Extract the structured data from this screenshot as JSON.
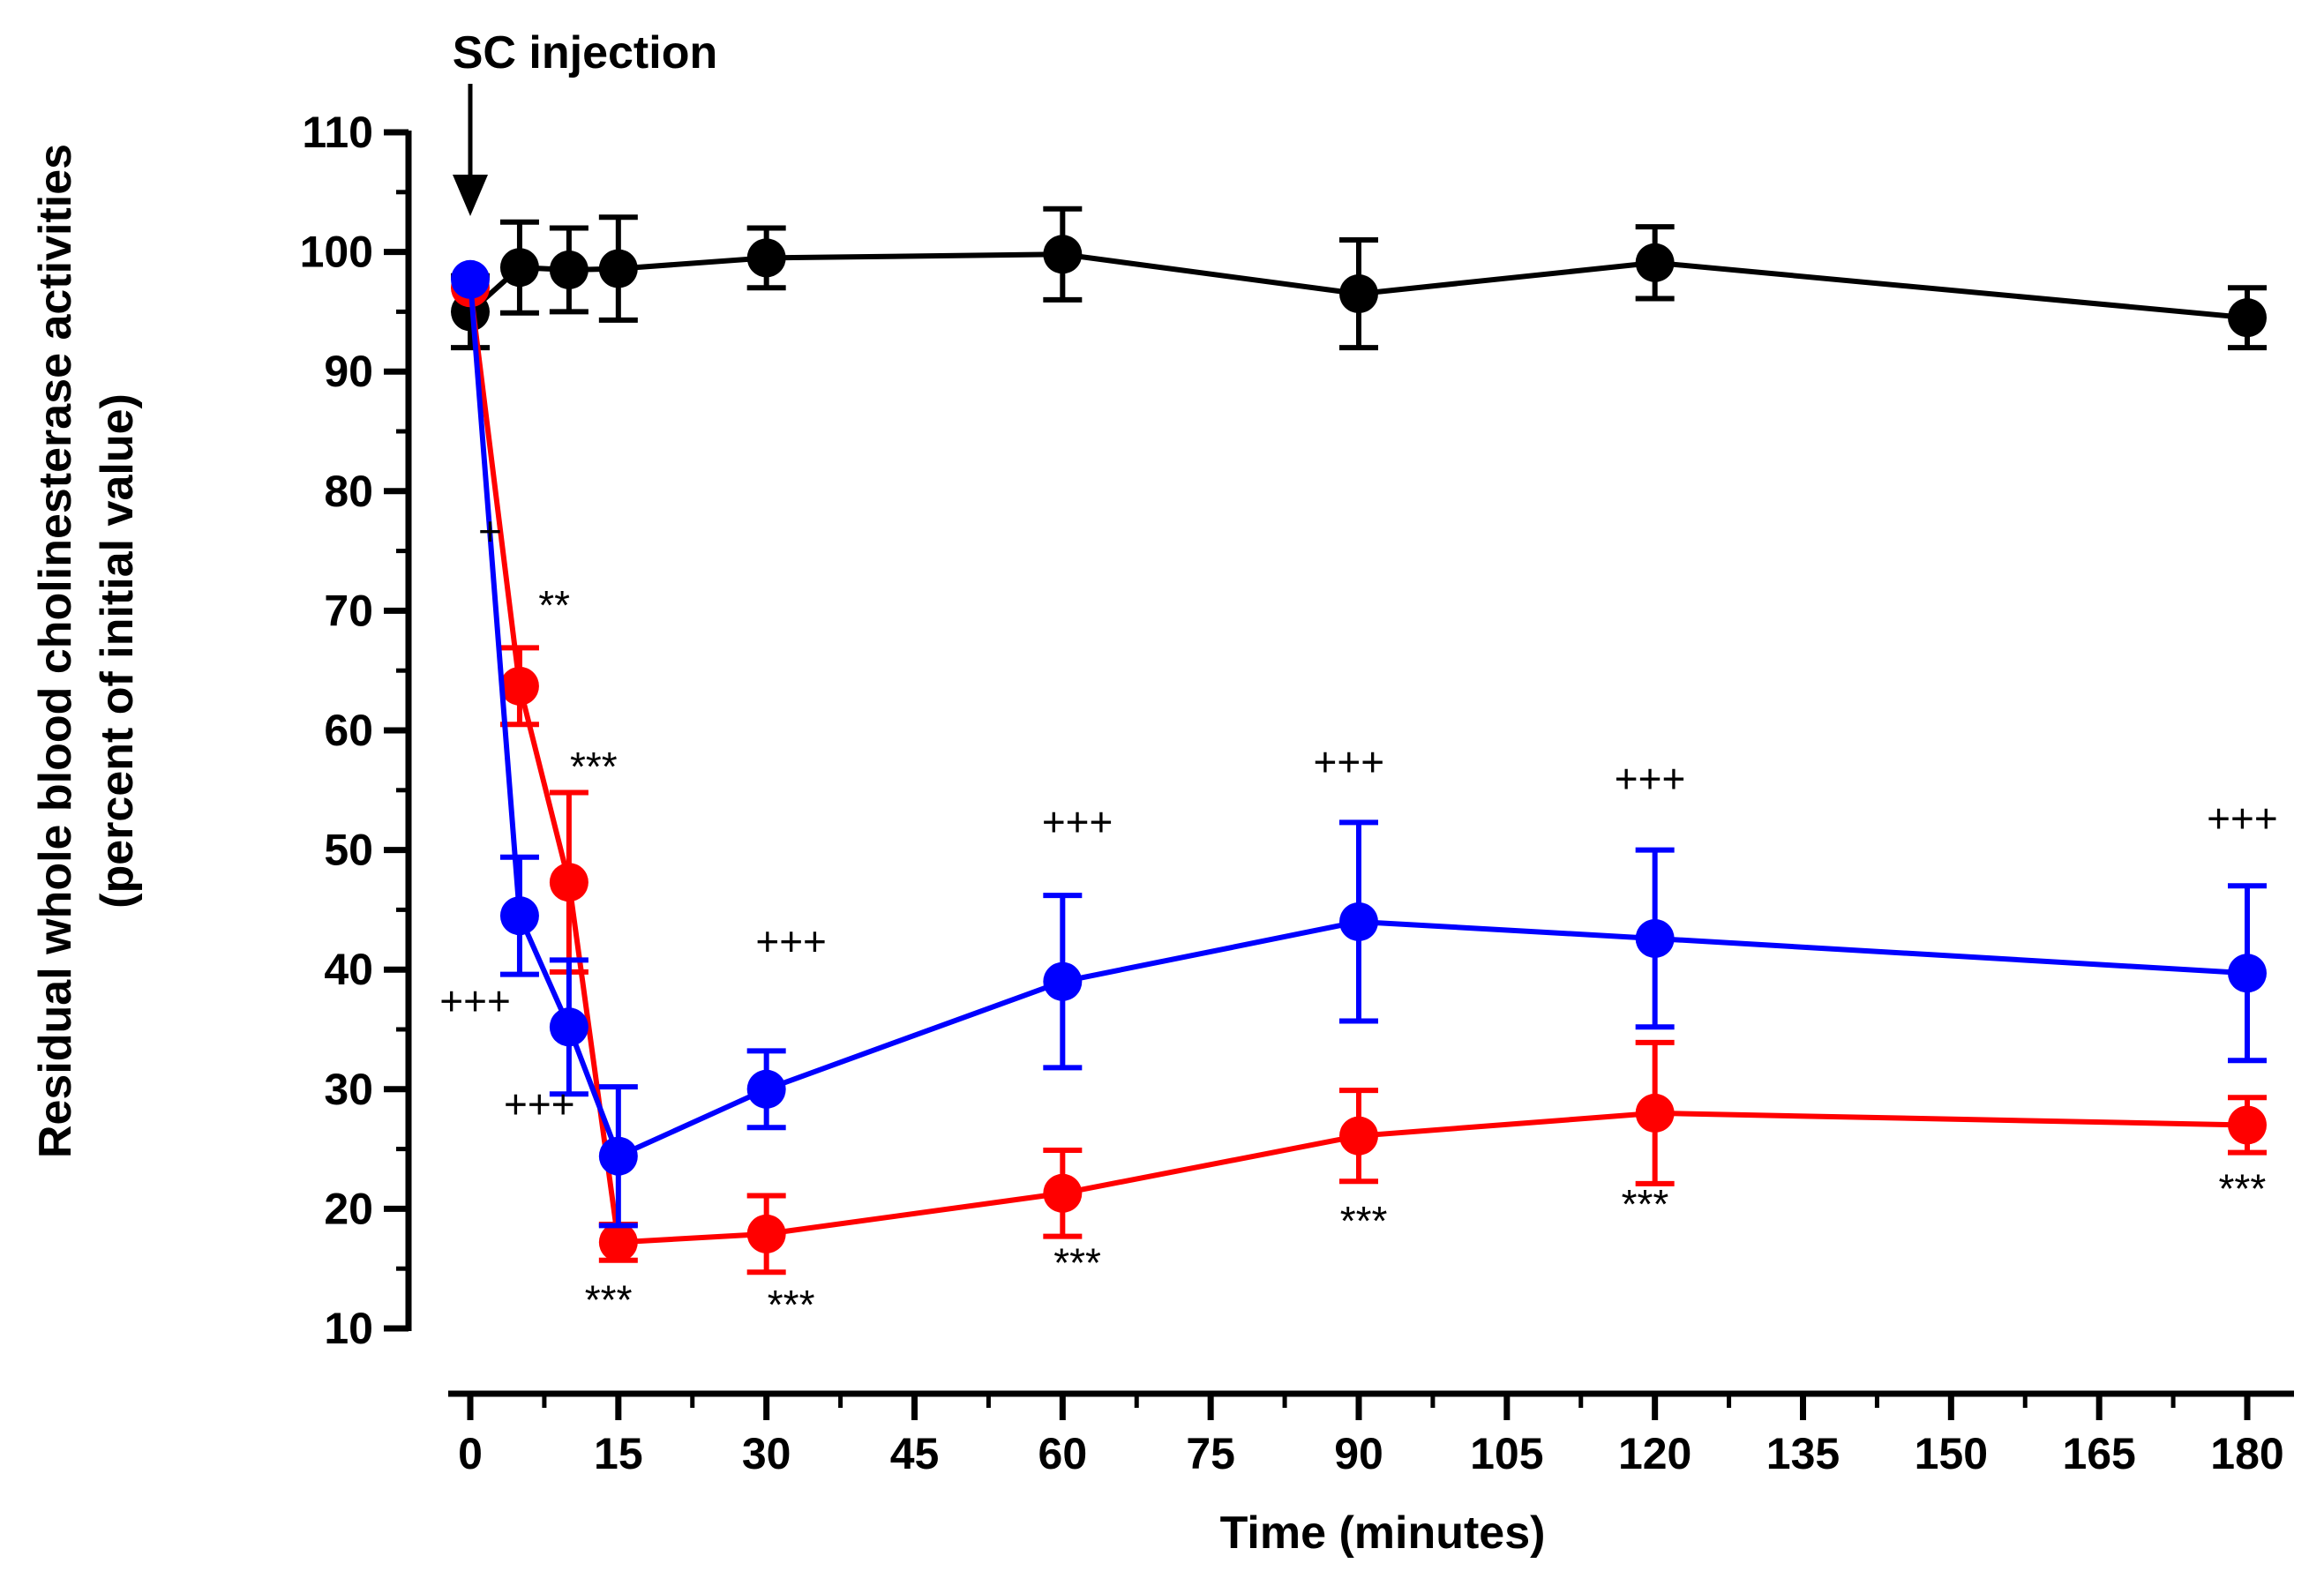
{
  "chart_data": {
    "type": "line",
    "title": "",
    "xlabel": "Time (minutes)",
    "ylabel_line1": "Residual whole blood  cholinesterase activities",
    "ylabel_line2": "(percent of initial value)",
    "xlim": [
      0,
      180
    ],
    "ylim": [
      10,
      110
    ],
    "xticks": [
      "0",
      "15",
      "30",
      "45",
      "60",
      "75",
      "90",
      "105",
      "120",
      "135",
      "150",
      "165",
      "180"
    ],
    "yticks": [
      "10",
      "20",
      "30",
      "40",
      "50",
      "60",
      "70",
      "80",
      "90",
      "100",
      "110"
    ],
    "injection_label": "SC injection",
    "series": [
      {
        "name": "black",
        "color": "#000000",
        "x": [
          0,
          5,
          10,
          15,
          30,
          60,
          90,
          120,
          180
        ],
        "y": [
          95,
          98.7,
          98.5,
          98.6,
          99.5,
          99.8,
          96.5,
          99.1,
          94.5
        ],
        "err": [
          3,
          3.8,
          3.5,
          4.3,
          2.5,
          3.8,
          4.5,
          3,
          2.5
        ]
      },
      {
        "name": "red",
        "color": "#ff0000",
        "x": [
          0,
          5,
          10,
          15,
          30,
          60,
          90,
          120,
          180
        ],
        "y": [
          97,
          63.7,
          47.3,
          17.2,
          17.9,
          21.3,
          26.1,
          28,
          27
        ],
        "err": [
          0,
          3.2,
          7.5,
          1.5,
          3.2,
          3.6,
          3.8,
          5.9,
          2.3
        ]
      },
      {
        "name": "blue",
        "color": "#0000ff",
        "x": [
          0,
          5,
          10,
          15,
          30,
          60,
          90,
          120,
          180
        ],
        "y": [
          97.7,
          44.5,
          35.2,
          24.4,
          30,
          39,
          44,
          42.6,
          39.7
        ],
        "err": [
          0,
          4.9,
          5.6,
          5.8,
          3.2,
          7.2,
          8.3,
          7.4,
          7.3
        ]
      }
    ],
    "annotations": [
      {
        "text": "+",
        "x": 2,
        "y": 75.5
      },
      {
        "text": "**",
        "x": 8.5,
        "y": 69.3
      },
      {
        "text": "***",
        "x": 12.5,
        "y": 55.8
      },
      {
        "text": "+++",
        "x": 0.5,
        "y": 36.2
      },
      {
        "text": "+++",
        "x": 7,
        "y": 27.6
      },
      {
        "text": "***",
        "x": 14,
        "y": 11.2
      },
      {
        "text": "+++",
        "x": 32.5,
        "y": 41.2
      },
      {
        "text": "***",
        "x": 32.5,
        "y": 10.8
      },
      {
        "text": "+++",
        "x": 61.5,
        "y": 51.2
      },
      {
        "text": "***",
        "x": 61.5,
        "y": 14.3
      },
      {
        "text": "+++",
        "x": 89,
        "y": 56.2
      },
      {
        "text": "***",
        "x": 90.5,
        "y": 17.8
      },
      {
        "text": "+++",
        "x": 119.5,
        "y": 54.8
      },
      {
        "text": "***",
        "x": 119,
        "y": 19.2
      },
      {
        "text": "+++",
        "x": 179.5,
        "y": 51.5
      },
      {
        "text": "***",
        "x": 179.5,
        "y": 20.5
      }
    ]
  }
}
